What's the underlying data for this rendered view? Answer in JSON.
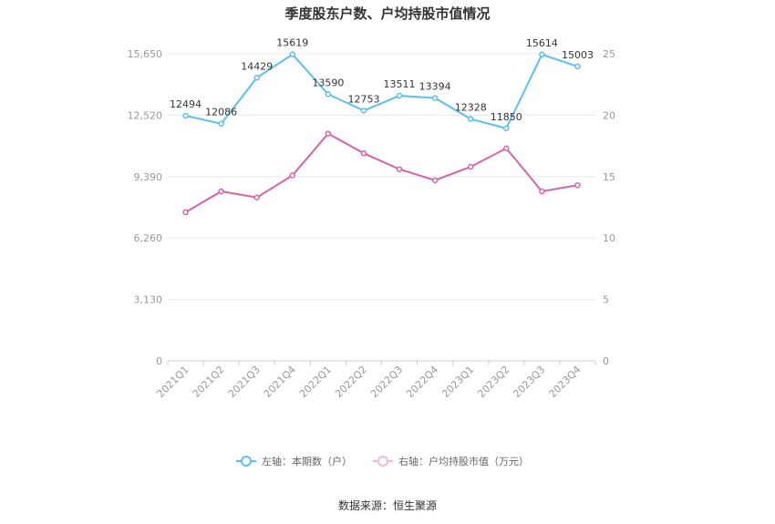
{
  "chart_data": {
    "type": "line",
    "title": "季度股东户数、户均持股市值情况",
    "categories": [
      "2021Q1",
      "2021Q2",
      "2021Q3",
      "2021Q4",
      "2022Q1",
      "2022Q2",
      "2022Q3",
      "2022Q4",
      "2023Q1",
      "2023Q2",
      "2023Q3",
      "2023Q4"
    ],
    "left_axis": {
      "min": 0,
      "max": 15650,
      "ticks": [
        "0",
        "3,130",
        "6,260",
        "9,390",
        "12,520",
        "15,650"
      ]
    },
    "right_axis": {
      "min": 0,
      "max": 25,
      "ticks": [
        "0",
        "5",
        "10",
        "15",
        "20",
        "25"
      ]
    },
    "series": [
      {
        "name": "左轴：本期数（户）",
        "axis": "left",
        "color": "#5bc0eb",
        "values": [
          12494,
          12086,
          14429,
          15619,
          13590,
          12753,
          13511,
          13394,
          12328,
          11850,
          15614,
          15003
        ],
        "labels": [
          "12494",
          "12086",
          "14429",
          "15619",
          "13590",
          "12753",
          "13511",
          "13394",
          "12328",
          "11850",
          "15614",
          "15003"
        ]
      },
      {
        "name": "右轴：户均持股市值（万元）",
        "axis": "right",
        "color": "#d563a8",
        "values": [
          12.1,
          13.8,
          13.3,
          15.1,
          18.5,
          16.9,
          15.6,
          14.7,
          15.8,
          17.3,
          13.8,
          14.3
        ]
      }
    ],
    "grid": true,
    "legend_position": "bottom"
  },
  "footer": {
    "source": "数据来源：恒生聚源"
  }
}
